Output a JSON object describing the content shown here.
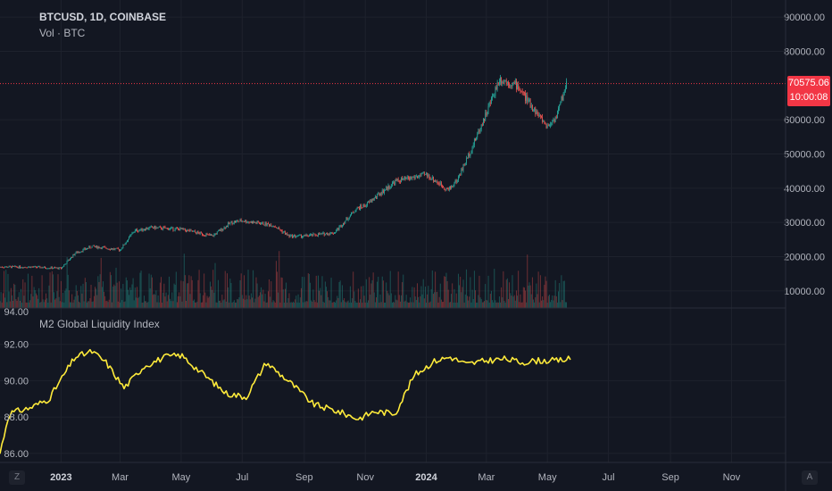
{
  "header": {
    "symbol": "BTCUSD, 1D, COINBASE",
    "volume_label": "Vol · BTC"
  },
  "lower_pane": {
    "title": "M2 Global Liquidity Index"
  },
  "price_tag": {
    "price": "70575.06",
    "countdown": "10:00:08",
    "color": "#f23645"
  },
  "corner_buttons": {
    "left": "Z",
    "right": "A"
  },
  "colors": {
    "bg": "#131722",
    "grid": "#1e222d",
    "text": "#b2b5be",
    "up": "#26a69a",
    "down": "#ef5350",
    "m2_line": "#ffeb3b",
    "price_line": "#f23645"
  },
  "chart_data": [
    {
      "type": "candlestick",
      "title": "BTCUSD, 1D, COINBASE",
      "ylim": [
        5000,
        95000
      ],
      "y_ticks": [
        "90000.00",
        "80000.00",
        "60000.00",
        "50000.00",
        "40000.00",
        "30000.00",
        "20000.00",
        "10000.00"
      ],
      "y_tick_values": [
        90000,
        80000,
        60000,
        50000,
        40000,
        30000,
        20000,
        10000
      ],
      "current_price": 70575.06,
      "x": [
        "2022-11-01",
        "2022-12-01",
        "2023-01-01",
        "2023-01-15",
        "2023-02-01",
        "2023-03-01",
        "2023-03-15",
        "2023-04-01",
        "2023-05-01",
        "2023-06-01",
        "2023-06-20",
        "2023-07-01",
        "2023-08-01",
        "2023-08-17",
        "2023-09-01",
        "2023-10-01",
        "2023-10-23",
        "2023-11-01",
        "2023-12-01",
        "2024-01-01",
        "2024-01-23",
        "2024-02-01",
        "2024-02-15",
        "2024-03-01",
        "2024-03-14",
        "2024-04-01",
        "2024-04-15",
        "2024-05-01",
        "2024-05-10",
        "2024-05-20"
      ],
      "close": [
        17000,
        17000,
        16600,
        21000,
        23000,
        22000,
        27500,
        28500,
        28000,
        26000,
        30000,
        30500,
        29200,
        26000,
        26000,
        27000,
        34000,
        35000,
        42000,
        44000,
        39500,
        42500,
        51500,
        62000,
        72000,
        70000,
        64000,
        58000,
        61000,
        70575
      ]
    },
    {
      "type": "line",
      "title": "M2 Global Liquidity Index",
      "ylim": [
        85.5,
        94
      ],
      "y_ticks": [
        "94.00",
        "92.00",
        "90.00",
        "88.00",
        "86.00"
      ],
      "y_tick_values": [
        94,
        92,
        90,
        88,
        86
      ],
      "x": [
        "2022-11-01",
        "2022-11-10",
        "2022-12-01",
        "2022-12-20",
        "2023-01-15",
        "2023-02-01",
        "2023-02-15",
        "2023-03-05",
        "2023-03-25",
        "2023-04-15",
        "2023-05-01",
        "2023-05-20",
        "2023-06-15",
        "2023-07-05",
        "2023-07-25",
        "2023-08-20",
        "2023-09-10",
        "2023-10-05",
        "2023-10-25",
        "2023-11-10",
        "2023-12-01",
        "2023-12-20",
        "2024-01-10",
        "2024-01-25",
        "2024-02-10",
        "2024-03-01",
        "2024-03-20",
        "2024-04-05",
        "2024-04-20",
        "2024-05-10",
        "2024-05-25"
      ],
      "values": [
        86.0,
        88.2,
        88.5,
        89.0,
        91.3,
        91.6,
        91.0,
        89.6,
        90.8,
        91.3,
        91.4,
        90.5,
        89.3,
        89.1,
        91.0,
        89.8,
        88.7,
        88.3,
        87.9,
        88.3,
        88.2,
        90.3,
        91.1,
        91.3,
        90.9,
        91.1,
        91.2,
        91.0,
        91.1,
        91.1,
        91.2
      ]
    }
  ],
  "x_axis": {
    "labels": [
      "2023",
      "Mar",
      "May",
      "Jul",
      "Sep",
      "Nov",
      "2024",
      "Mar",
      "May",
      "Jul",
      "Sep",
      "Nov"
    ],
    "dates": [
      "2023-01-01",
      "2023-03-01",
      "2023-05-01",
      "2023-07-01",
      "2023-09-01",
      "2023-11-01",
      "2024-01-01",
      "2024-03-01",
      "2024-05-01",
      "2024-07-01",
      "2024-09-01",
      "2024-11-01"
    ],
    "bold": [
      true,
      false,
      false,
      false,
      false,
      false,
      true,
      false,
      false,
      false,
      false,
      false
    ]
  }
}
